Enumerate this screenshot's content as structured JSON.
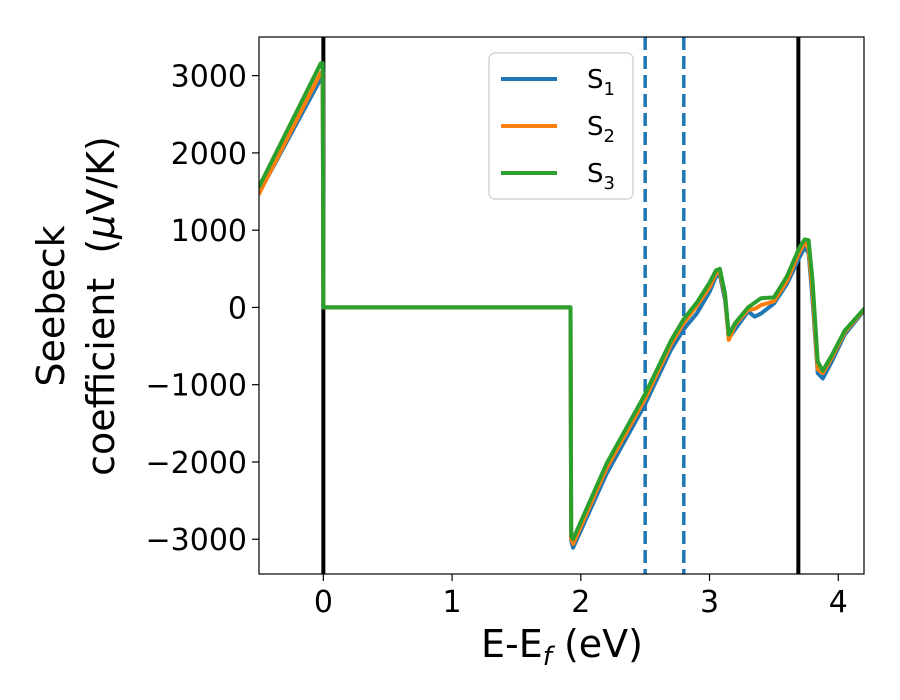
{
  "chart_data": {
    "type": "line",
    "xlabel": "E-E_f (eV)",
    "xlabel_parts": {
      "base": "E-E",
      "sub": "f",
      "tail": " (eV)"
    },
    "ylabel_line1": "Seebeck",
    "ylabel_line2_pre": "coefficient  (",
    "ylabel_mu": "μ",
    "ylabel_line2_post": "V/K)",
    "xlim": [
      -0.5,
      4.2
    ],
    "ylim": [
      -3450,
      3500
    ],
    "x_ticks": [
      0,
      1,
      2,
      3,
      4
    ],
    "x_tick_labels": [
      "0",
      "1",
      "2",
      "3",
      "4"
    ],
    "y_ticks": [
      3000,
      2000,
      1000,
      0,
      -1000,
      -2000,
      -3000
    ],
    "y_tick_labels": [
      "3000",
      "2000",
      "1000",
      "0",
      "−1000",
      "−2000",
      "−3000"
    ],
    "grid": false,
    "legend_placement": "top-center",
    "vertical_lines": [
      {
        "x": 0,
        "style": "solid",
        "color": "#000000"
      },
      {
        "x": 3.69,
        "style": "solid",
        "color": "#000000"
      },
      {
        "x": 2.5,
        "style": "dashed",
        "color": "#1f77b4"
      },
      {
        "x": 2.8,
        "style": "dashed",
        "color": "#1f77b4"
      }
    ],
    "series": [
      {
        "name": "S_1",
        "label_base": "S",
        "label_sub": "1",
        "color": "#1f77b4",
        "x": [
          -0.5,
          -0.02,
          -0.005,
          0.0,
          1.92,
          1.925,
          1.94,
          2.2,
          2.5,
          2.7,
          2.8,
          2.9,
          3.0,
          3.05,
          3.08,
          3.12,
          3.15,
          3.2,
          3.3,
          3.35,
          3.4,
          3.5,
          3.6,
          3.7,
          3.74,
          3.77,
          3.8,
          3.84,
          3.88,
          3.95,
          4.05,
          4.2
        ],
        "y": [
          1480,
          2960,
          2960,
          0,
          0,
          -3020,
          -3110,
          -2150,
          -1250,
          -550,
          -280,
          -80,
          200,
          400,
          420,
          100,
          -400,
          -280,
          -50,
          -120,
          -80,
          50,
          300,
          650,
          780,
          700,
          100,
          -850,
          -920,
          -700,
          -350,
          -40
        ]
      },
      {
        "name": "S_2",
        "label_base": "S",
        "label_sub": "2",
        "color": "#ff7f0e",
        "x": [
          -0.5,
          -0.02,
          -0.005,
          0.0,
          1.92,
          1.925,
          1.94,
          2.2,
          2.5,
          2.7,
          2.8,
          2.9,
          3.0,
          3.05,
          3.08,
          3.12,
          3.15,
          3.2,
          3.3,
          3.35,
          3.4,
          3.5,
          3.6,
          3.7,
          3.74,
          3.77,
          3.8,
          3.84,
          3.88,
          3.95,
          4.05,
          4.2
        ],
        "y": [
          1470,
          3040,
          3040,
          0,
          0,
          -2990,
          -3060,
          -2080,
          -1180,
          -480,
          -200,
          20,
          260,
          440,
          460,
          150,
          -420,
          -220,
          -30,
          -20,
          30,
          80,
          340,
          720,
          850,
          760,
          200,
          -800,
          -850,
          -650,
          -320,
          -30
        ]
      },
      {
        "name": "S_3",
        "label_base": "S",
        "label_sub": "3",
        "color": "#2ca02c",
        "x": [
          -0.5,
          -0.02,
          -0.005,
          0.0,
          1.92,
          1.925,
          1.94,
          2.2,
          2.5,
          2.7,
          2.8,
          2.9,
          3.0,
          3.05,
          3.08,
          3.12,
          3.15,
          3.2,
          3.3,
          3.35,
          3.4,
          3.5,
          3.6,
          3.7,
          3.74,
          3.77,
          3.8,
          3.84,
          3.88,
          3.95,
          4.05,
          4.2
        ],
        "y": [
          1560,
          3160,
          3160,
          0,
          0,
          -2960,
          -3000,
          -2020,
          -1120,
          -430,
          -150,
          60,
          320,
          480,
          500,
          180,
          -350,
          -200,
          0,
          60,
          120,
          130,
          400,
          780,
          880,
          870,
          350,
          -700,
          -820,
          -620,
          -300,
          -20
        ]
      }
    ]
  }
}
